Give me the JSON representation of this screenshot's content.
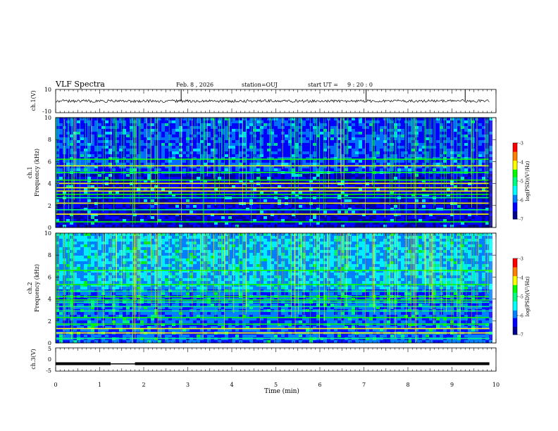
{
  "header": {
    "title": "VLF Spectra",
    "date": "Feb. 8 , 2026",
    "station": "station=OUJ",
    "start_label": "start UT =",
    "start_time": "9 : 20 : 0"
  },
  "colorscale": {
    "label": "log(PSD)(V²/Hz)",
    "ticks": [
      "-3",
      "-4",
      "-5",
      "-6",
      "-7"
    ],
    "tick_values": [
      -3,
      -4,
      -5,
      -6,
      -7
    ],
    "range": [
      -7,
      -3
    ],
    "colors": [
      "#000090",
      "#0000ff",
      "#0080ff",
      "#00ffff",
      "#00ff80",
      "#00ff00",
      "#ffff00",
      "#ff8000",
      "#ff0000",
      "#ffffff"
    ]
  },
  "chart_data": [
    {
      "type": "line",
      "panel": "ch1-waveform",
      "ylabel": "ch.1(V)",
      "ylim": [
        -10,
        10
      ],
      "y_ticks": [
        "10",
        "-10"
      ],
      "baseline": 0,
      "spikes_min": [
        2.85,
        7.05,
        9.3
      ]
    },
    {
      "type": "heatmap",
      "panel": "ch1-spectrogram",
      "ylabel": "ch.1 Frequency (kHz)",
      "ylim": [
        0,
        10
      ],
      "y_ticks": [
        "10",
        "8",
        "6",
        "4",
        "2",
        "0"
      ],
      "y_tick_values": [
        10,
        8,
        6,
        4,
        2,
        0
      ],
      "bands_khz": [
        0.5,
        1.2,
        1.6,
        2.2,
        2.7,
        3.0,
        3.3,
        3.6,
        4.0,
        4.3,
        5.0,
        5.6,
        6.2
      ],
      "background_log_psd": -6.3,
      "bright_log_psd": -4.5
    },
    {
      "type": "heatmap",
      "panel": "ch2-spectrogram",
      "ylabel": "ch.2 Frequency (kHz)",
      "ylim": [
        0,
        10
      ],
      "y_ticks": [
        "10",
        "8",
        "6",
        "4",
        "2",
        "0"
      ],
      "y_tick_values": [
        10,
        8,
        6,
        4,
        2,
        0
      ],
      "bands_khz": [
        0.4,
        0.9,
        1.3,
        1.7,
        2.3,
        2.9,
        3.3,
        3.7,
        3.9,
        4.2,
        4.7,
        5.3,
        6.6
      ],
      "background_log_psd": -5.8,
      "bright_log_psd": -4.5
    },
    {
      "type": "line",
      "panel": "ch3-waveform",
      "ylabel": "ch.3(V)",
      "ylim": [
        -5,
        5
      ],
      "y_ticks": [
        "5",
        "0",
        "-5"
      ],
      "level_v": -1.8,
      "gap_min": [
        1.25,
        1.8
      ]
    }
  ],
  "x_axis": {
    "label": "Time (min)",
    "range": [
      0,
      10
    ],
    "ticks": [
      "0",
      "1",
      "2",
      "3",
      "4",
      "5",
      "6",
      "7",
      "8",
      "9",
      "10"
    ],
    "data_end_min": 9.85
  }
}
